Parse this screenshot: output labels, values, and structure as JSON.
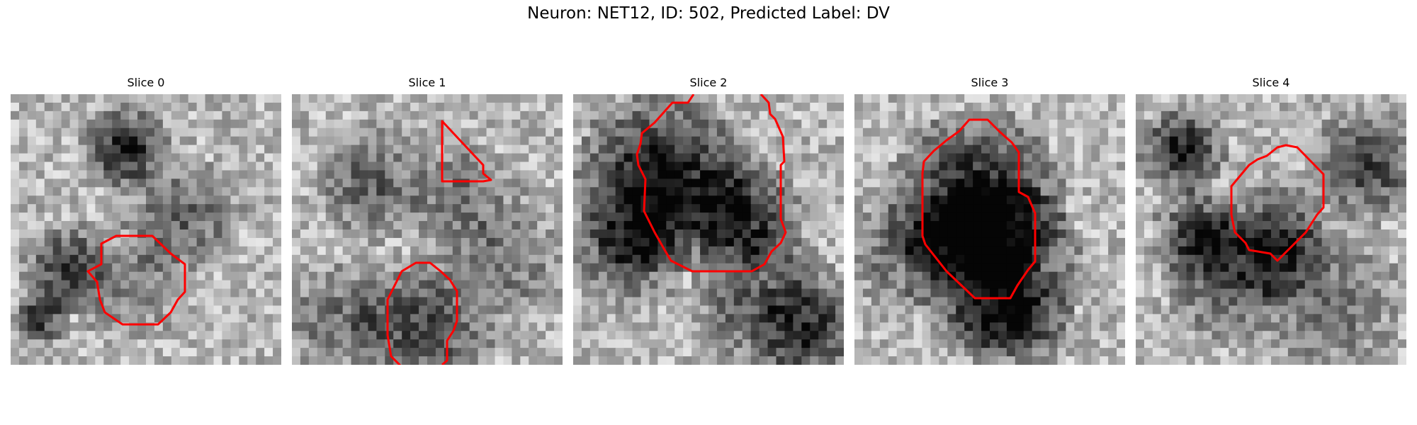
{
  "figure": {
    "title": "Neuron: NET12, ID: 502, Predicted Label: DV"
  },
  "panels": [
    {
      "title": "Slice 0",
      "seed": 11
    },
    {
      "title": "Slice 1",
      "seed": 27
    },
    {
      "title": "Slice 2",
      "seed": 43
    },
    {
      "title": "Slice 3",
      "seed": 61
    },
    {
      "title": "Slice 4",
      "seed": 89
    }
  ],
  "colors": {
    "contour": "#ff0000"
  }
}
